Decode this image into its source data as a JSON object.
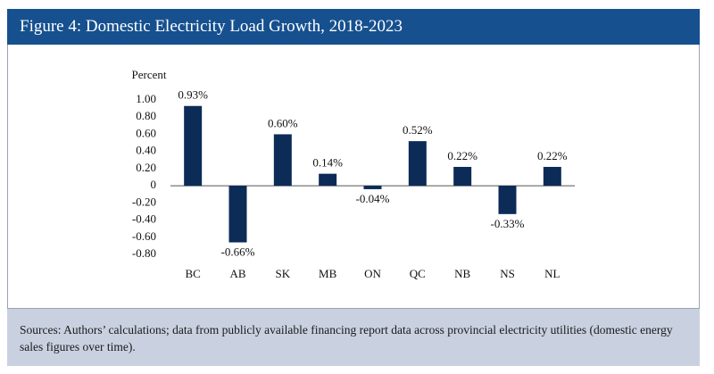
{
  "chart_data": {
    "type": "bar",
    "title": "Figure 4: Domestic Electricity Load Growth, 2018-2023",
    "ylabel": "Percent",
    "categories": [
      "BC",
      "AB",
      "SK",
      "MB",
      "ON",
      "QC",
      "NB",
      "NS",
      "NL"
    ],
    "values": [
      0.93,
      -0.66,
      0.6,
      0.14,
      -0.04,
      0.52,
      0.22,
      -0.33,
      0.22
    ],
    "value_labels": [
      "0.93%",
      "-0.66%",
      "0.60%",
      "0.14%",
      "-0.04%",
      "0.52%",
      "0.22%",
      "-0.33%",
      "0.22%"
    ],
    "color": "#0c2b57",
    "ylim": [
      -0.8,
      1.0
    ],
    "yticks": [
      {
        "value": 1.0,
        "label": "1.00"
      },
      {
        "value": 0.8,
        "label": "0.80"
      },
      {
        "value": 0.6,
        "label": "0.60"
      },
      {
        "value": 0.4,
        "label": "0.40"
      },
      {
        "value": 0.2,
        "label": "0.20"
      },
      0,
      {
        "value": -0.2,
        "label": "-0.20"
      },
      {
        "value": -0.4,
        "label": "-0.40"
      },
      {
        "value": -0.6,
        "label": "-0.60"
      },
      {
        "value": -0.8,
        "label": "-0.80"
      }
    ],
    "source": "Sources: Authors’ calculations; data from publicly available financing report data across provincial electricity utilities (domestic energy sales figures over time)."
  }
}
